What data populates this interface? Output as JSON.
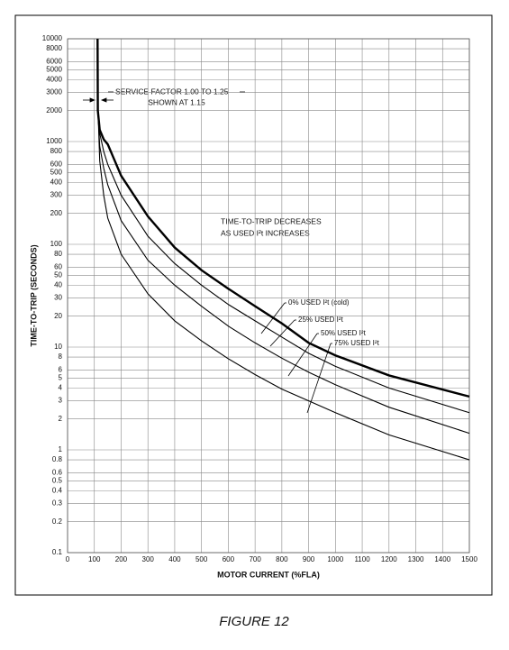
{
  "chart_data": {
    "type": "line",
    "x_label": "MOTOR CURRENT (%FLA)",
    "y_label": "TIME-TO-TRIP (SECONDS)",
    "caption": "FIGURE 12",
    "annotations": [
      "SERVICE FACTOR 1.00 TO 1.25",
      "SHOWN AT 1.15",
      "TIME-TO-TRIP DECREASES",
      "AS USED I²t INCREASES"
    ],
    "y_log": true,
    "grid": true,
    "xlim": [
      0,
      1500
    ],
    "xticks": [
      0,
      100,
      200,
      300,
      400,
      500,
      600,
      700,
      800,
      900,
      1000,
      1100,
      1200,
      1300,
      1400,
      1500
    ],
    "ylim": [
      0.1,
      10000
    ],
    "yticks": [
      0.1,
      0.2,
      0.3,
      0.4,
      0.5,
      0.6,
      0.8,
      1,
      2,
      3,
      4,
      5,
      6,
      8,
      10,
      20,
      30,
      40,
      50,
      60,
      80,
      100,
      200,
      300,
      400,
      500,
      600,
      800,
      1000,
      2000,
      3000,
      4000,
      5000,
      6000,
      8000,
      10000
    ],
    "series": [
      {
        "name": "0% USED I²t (cold)",
        "color": "#000000",
        "x": [
          112,
          113,
          120,
          135,
          150,
          200,
          300,
          400,
          500,
          600,
          700,
          800,
          900,
          1000,
          1200,
          1500
        ],
        "values": [
          10000,
          2000,
          1300,
          1050,
          940,
          465,
          187,
          93,
          56,
          37,
          25,
          17,
          11,
          8.3,
          5.3,
          3.3
        ]
      },
      {
        "name": "25% USED I²t",
        "color": "#000000",
        "x": [
          113,
          120,
          135,
          150,
          200,
          300,
          400,
          500,
          600,
          700,
          800,
          900,
          1000,
          1200,
          1500
        ],
        "values": [
          2000,
          1200,
          800,
          600,
          300,
          120,
          65,
          40,
          26,
          18,
          12.5,
          8.7,
          6.5,
          4,
          2.3
        ]
      },
      {
        "name": "50% USED I²t",
        "color": "#000000",
        "x": [
          114,
          120,
          135,
          150,
          200,
          300,
          400,
          500,
          600,
          700,
          800,
          900,
          1000,
          1200,
          1500
        ],
        "values": [
          1800,
          900,
          550,
          380,
          170,
          70,
          40,
          25,
          16,
          11,
          7.8,
          5.7,
          4.3,
          2.6,
          1.45
        ]
      },
      {
        "name": "75% USED I²t",
        "color": "#000000",
        "x": [
          115,
          120,
          135,
          150,
          200,
          300,
          400,
          500,
          600,
          700,
          800,
          900,
          1000,
          1200,
          1500
        ],
        "values": [
          1600,
          650,
          300,
          180,
          80,
          33,
          18,
          11.5,
          7.7,
          5.4,
          3.9,
          3,
          2.3,
          1.4,
          0.8
        ]
      }
    ]
  }
}
